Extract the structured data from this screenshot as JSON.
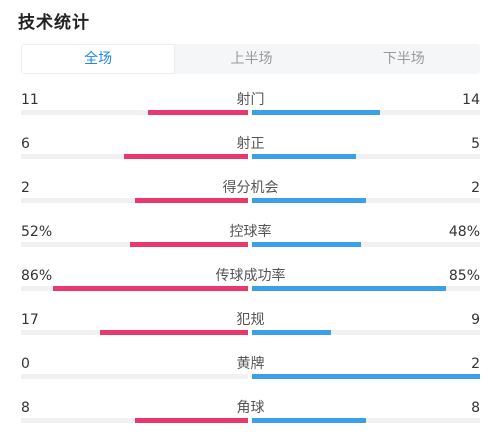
{
  "title": "技术统计",
  "tabs": [
    "全场",
    "上半场",
    "下半场"
  ],
  "active_tab": 0,
  "colors": {
    "home": "#e8386e",
    "away": "#3aa0e9",
    "active_tab": "#1e88e5"
  },
  "stats": [
    {
      "label": "射门",
      "home": "11",
      "away": "14",
      "home_share": 0.44,
      "away_share": 0.56
    },
    {
      "label": "射正",
      "home": "6",
      "away": "5",
      "home_share": 0.545,
      "away_share": 0.455
    },
    {
      "label": "得分机会",
      "home": "2",
      "away": "2",
      "home_share": 0.5,
      "away_share": 0.5
    },
    {
      "label": "控球率",
      "home": "52%",
      "away": "48%",
      "home_share": 0.52,
      "away_share": 0.48
    },
    {
      "label": "传球成功率",
      "home": "86%",
      "away": "85%",
      "home_share": 0.86,
      "away_share": 0.85
    },
    {
      "label": "犯规",
      "home": "17",
      "away": "9",
      "home_share": 0.654,
      "away_share": 0.346
    },
    {
      "label": "黄牌",
      "home": "0",
      "away": "2",
      "home_share": 0.0,
      "away_share": 1.0
    },
    {
      "label": "角球",
      "home": "8",
      "away": "8",
      "home_share": 0.5,
      "away_share": 0.5
    }
  ]
}
